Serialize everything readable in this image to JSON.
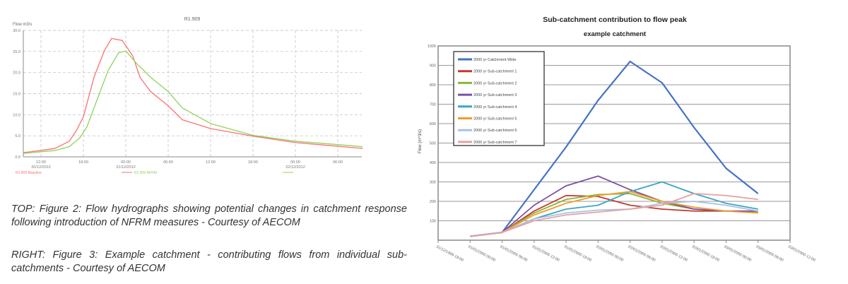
{
  "captions": {
    "top": "TOP: Figure 2: Flow hydrographs showing potential changes in catchment response following introduction of NFRM measures - Courtesy of AECOM",
    "right": "RIGHT: Figure 3: Example catchment - contributing flows from individual sub-catchments - Courtesy of AECOM"
  },
  "chart_data": [
    {
      "type": "line",
      "title": "R1.909",
      "ylabel": "Flow m3/s",
      "ylim": [
        0,
        30
      ],
      "yticks": [
        "0.0",
        "5.0",
        "10.0",
        "15.0",
        "20.0",
        "25.0",
        "30.0"
      ],
      "xticks": [
        {
          "time": "12:00",
          "date": "20/12/2012"
        },
        {
          "time": "18:00",
          "date": ""
        },
        {
          "time": "00:00",
          "date": "21/12/2012"
        },
        {
          "time": "06:00",
          "date": ""
        },
        {
          "time": "12:00",
          "date": ""
        },
        {
          "time": "18:00",
          "date": ""
        },
        {
          "time": "00:00",
          "date": "22/12/2012"
        },
        {
          "time": "06:00",
          "date": ""
        }
      ],
      "grid": true,
      "legend_position": "bottom",
      "series": [
        {
          "name": "R1.909 Baseline",
          "color": "#ff6f6f",
          "x": [
            "20/12 09:30",
            "20/12 12:00",
            "20/12 14:00",
            "20/12 16:00",
            "20/12 17:00",
            "20/12 18:00",
            "20/12 19:30",
            "20/12 21:00",
            "20/12 22:00",
            "20/12 23:30",
            "21/12 01:00",
            "21/12 02:00",
            "21/12 03:30",
            "21/12 06:00",
            "21/12 08:00",
            "21/12 12:00",
            "21/12 18:00",
            "22/12 00:00",
            "22/12 06:00",
            "22/12 09:30"
          ],
          "y": [
            1.0,
            1.5,
            2.0,
            3.7,
            6.2,
            9.5,
            18.9,
            25.3,
            28.1,
            27.6,
            23.9,
            18.9,
            15.5,
            12.1,
            8.8,
            6.7,
            4.9,
            3.4,
            2.5,
            2.0
          ]
        },
        {
          "name": "R1.909 NFRM",
          "color": "#8fd45a",
          "x": [
            "20/12 09:30",
            "20/12 12:00",
            "20/12 14:00",
            "20/12 16:00",
            "20/12 17:30",
            "20/12 18:30",
            "20/12 20:00",
            "20/12 21:30",
            "20/12 23:00",
            "21/12 00:00",
            "21/12 01:30",
            "21/12 03:30",
            "21/12 06:00",
            "21/12 08:00",
            "21/12 12:00",
            "21/12 18:00",
            "22/12 00:00",
            "22/12 06:00",
            "22/12 09:30"
          ],
          "y": [
            0.8,
            1.2,
            1.5,
            2.4,
            4.5,
            7.1,
            13.8,
            20.5,
            24.7,
            25.1,
            22.2,
            18.9,
            15.5,
            11.6,
            7.9,
            5.1,
            3.7,
            2.9,
            2.4
          ]
        }
      ]
    },
    {
      "type": "line",
      "title": "Sub-catchment contribution to flow peak",
      "subtitle": "example catchment",
      "ylabel": "Flow (m^3/s)",
      "ylim": [
        0,
        1000
      ],
      "yticks": [
        "100",
        "200",
        "300",
        "400",
        "500",
        "600",
        "700",
        "800",
        "900",
        "1000"
      ],
      "grid": true,
      "legend_position": "top-left",
      "categories": [
        "31/12/1999 18:00",
        "01/01/2000 00:00",
        "01/01/2000 06:00",
        "01/01/2000 12:00",
        "01/01/2000 18:00",
        "02/01/2000 00:00",
        "02/01/2000 06:00",
        "02/01/2000 12:00",
        "02/01/2000 18:00",
        "03/01/2000 00:00",
        "03/01/2000 06:00",
        "03/01/2000 12:00"
      ],
      "series": [
        {
          "name": "2000 yr Catchment Wide",
          "color": "#4472c4",
          "values": [
            null,
            20,
            40,
            260,
            480,
            720,
            920,
            810,
            580,
            370,
            240,
            null
          ]
        },
        {
          "name": "2000 yr Sub-catchment 1",
          "color": "#c0392b",
          "values": [
            null,
            20,
            40,
            150,
            230,
            225,
            180,
            160,
            150,
            150,
            145,
            null
          ]
        },
        {
          "name": "2000 yr Sub-catchment 2",
          "color": "#8db33a",
          "values": [
            null,
            20,
            40,
            140,
            210,
            235,
            240,
            190,
            160,
            150,
            145,
            null
          ]
        },
        {
          "name": "2000 yr Sub-catchment 3",
          "color": "#7b4fa6",
          "values": [
            null,
            20,
            40,
            180,
            280,
            330,
            260,
            200,
            160,
            150,
            150,
            null
          ]
        },
        {
          "name": "2000 yr Sub-catchment 4",
          "color": "#3aa6c4",
          "values": [
            null,
            20,
            40,
            110,
            160,
            180,
            250,
            300,
            240,
            190,
            160,
            null
          ]
        },
        {
          "name": "2000 yr Sub-catchment 5",
          "color": "#f39c2a",
          "values": [
            null,
            20,
            40,
            130,
            190,
            230,
            250,
            200,
            170,
            150,
            140,
            null
          ]
        },
        {
          "name": "2000 yr Sub-catchment 6",
          "color": "#a9c1e6",
          "values": [
            null,
            20,
            40,
            110,
            140,
            155,
            160,
            190,
            200,
            180,
            150,
            null
          ]
        },
        {
          "name": "2000 yr Sub-catchment 7",
          "color": "#e8a0a0",
          "values": [
            null,
            20,
            40,
            100,
            130,
            145,
            160,
            180,
            240,
            230,
            210,
            null
          ]
        }
      ]
    }
  ]
}
